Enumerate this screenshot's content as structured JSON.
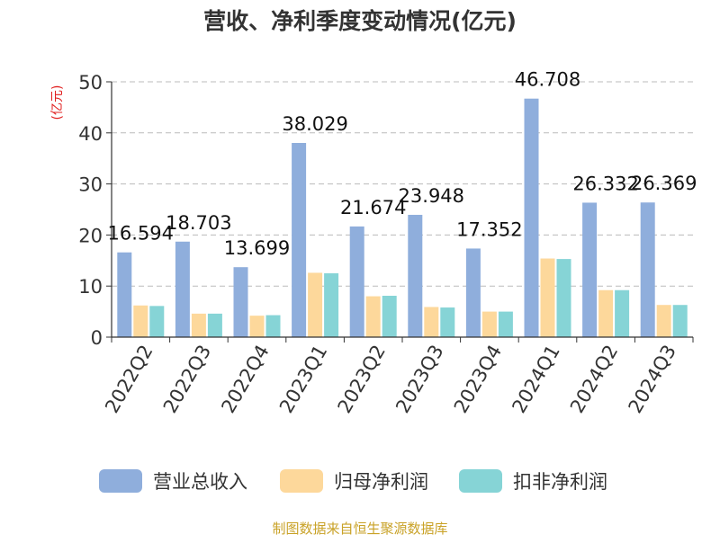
{
  "chart_data": {
    "type": "bar",
    "title": "营收、净利季度变动情况(亿元)",
    "ylabel": "(亿元)",
    "xlabel": "",
    "ylim": [
      0,
      50
    ],
    "yticks": [
      0,
      10,
      20,
      30,
      40,
      50
    ],
    "grid": true,
    "legend_position": "bottom",
    "categories": [
      "2022Q2",
      "2022Q3",
      "2022Q4",
      "2023Q1",
      "2023Q2",
      "2023Q3",
      "2023Q4",
      "2024Q1",
      "2024Q2",
      "2024Q3"
    ],
    "series": [
      {
        "name": "营业总收入",
        "color": "#8FAEDC",
        "values": [
          16.594,
          18.703,
          13.699,
          38.029,
          21.674,
          23.948,
          17.352,
          46.708,
          26.332,
          26.369
        ]
      },
      {
        "name": "归母净利润",
        "color": "#FDD89B",
        "values": [
          6.2,
          4.6,
          4.2,
          12.6,
          8.0,
          5.9,
          5.0,
          15.4,
          9.2,
          6.3
        ]
      },
      {
        "name": "扣非净利润",
        "color": "#86D4D6",
        "values": [
          6.1,
          4.6,
          4.3,
          12.5,
          8.1,
          5.8,
          5.0,
          15.3,
          9.2,
          6.3
        ]
      }
    ],
    "data_labels": [
      "16.594",
      "18.703",
      "13.699",
      "38.029",
      "21.674",
      "23.948",
      "17.352",
      "46.708",
      "26.332",
      "26.369"
    ]
  },
  "footer": {
    "source": "制图数据来自恒生聚源数据库"
  },
  "colors": {
    "axis": "#333333",
    "grid": "#bbbbbb",
    "ylabel": "#e02020",
    "source": "#c9a227"
  }
}
